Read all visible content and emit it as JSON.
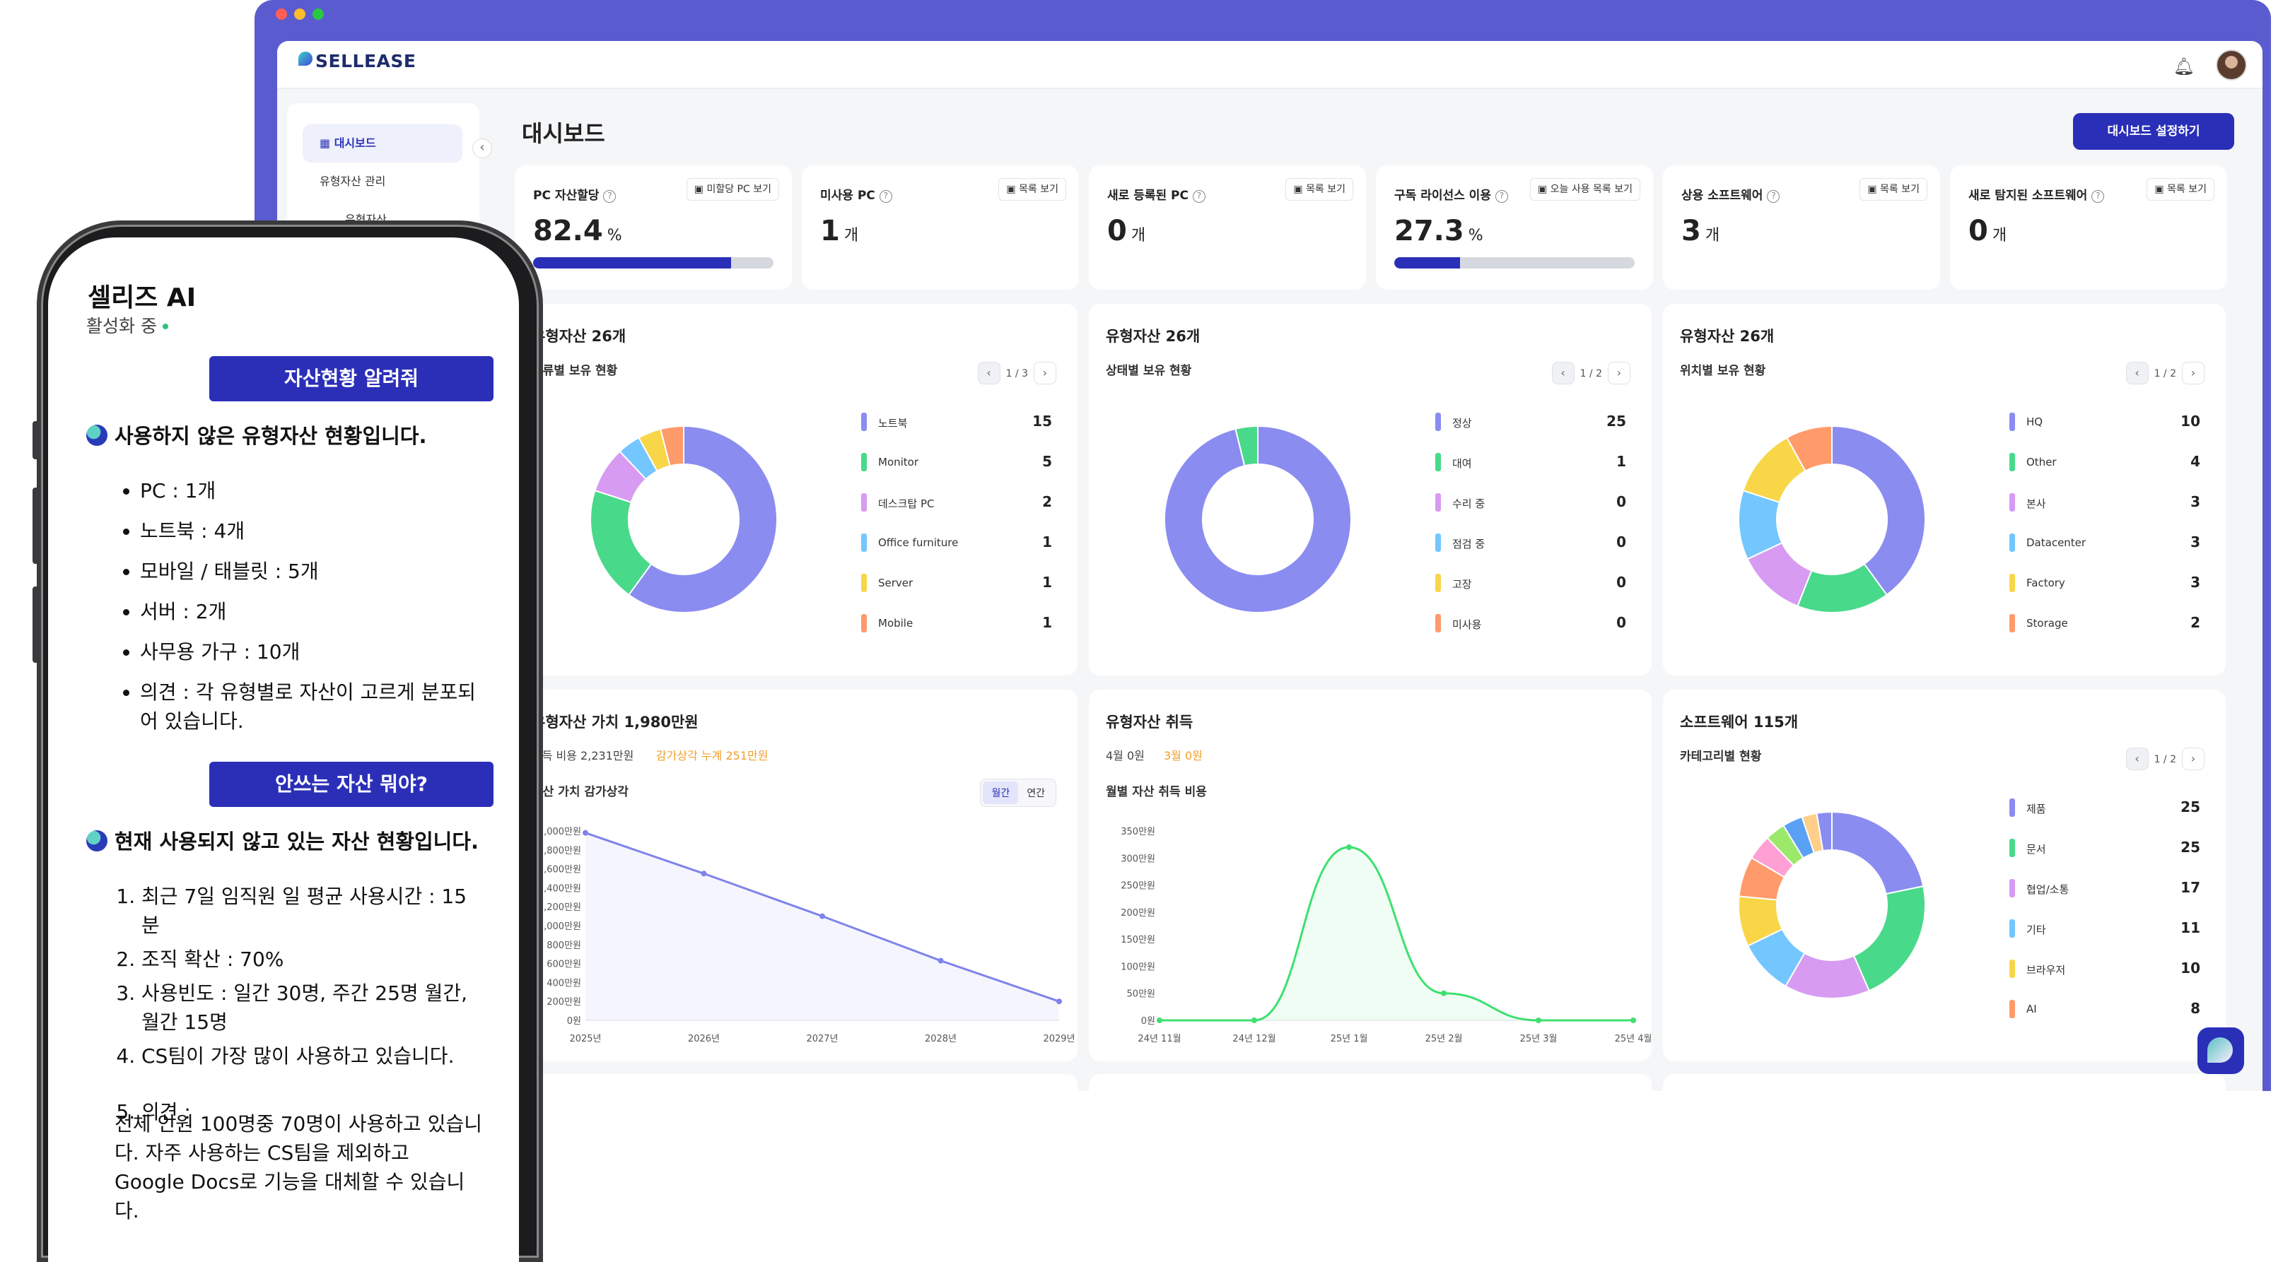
{
  "app": {
    "brand": "SELLEASE",
    "page_title": "대시보드",
    "config_button": "대시보드 설정하기"
  },
  "sidebar": {
    "items": [
      {
        "label": "대시보드"
      },
      {
        "label": "유형자산 관리"
      },
      {
        "label": "유형자산"
      }
    ]
  },
  "kpis": [
    {
      "label": "PC 자산할당",
      "link": "미할당 PC 보기",
      "value": "82.4",
      "unit": "%",
      "progress": 0.824
    },
    {
      "label": "미사용 PC",
      "link": "목록 보기",
      "value": "1",
      "unit": "개"
    },
    {
      "label": "새로 등록된 PC",
      "link": "목록 보기",
      "value": "0",
      "unit": "개"
    },
    {
      "label": "구독 라이선스 이용",
      "link": "오늘 사용 목록 보기",
      "value": "27.3",
      "unit": "%",
      "progress": 0.273
    },
    {
      "label": "상용 소프트웨어",
      "link": "목록 보기",
      "value": "3",
      "unit": "개"
    },
    {
      "label": "새로 탐지된 소프트웨어",
      "link": "목록 보기",
      "value": "0",
      "unit": "개"
    }
  ],
  "cards": {
    "type": {
      "title": "유형자산 26개",
      "subtitle": "종류별 보유 현황",
      "pager": "1 / 3"
    },
    "status": {
      "title": "유형자산 26개",
      "subtitle": "상태별 보유 현황",
      "pager": "1 / 2"
    },
    "location": {
      "title": "유형자산 26개",
      "subtitle": "위치별 보유 현황",
      "pager": "1 / 2"
    },
    "value": {
      "title": "유형자산 가치 1,980만원",
      "cost": "취득 비용 2,231만원",
      "depr": "감가상각 누계 251만원",
      "subtitle": "자산 가치 감가상각",
      "toggle": [
        "월간",
        "연간"
      ]
    },
    "acquire": {
      "title": "유형자산 취득",
      "month": "4월 0원",
      "prev": "3월 0원",
      "subtitle": "월별 자산 취득 비용"
    },
    "software": {
      "title": "소프트웨어 115개",
      "subtitle": "카테고리별 현황",
      "pager": "1 / 2"
    }
  },
  "chart_data": [
    {
      "type": "pie",
      "title": "종류별 보유 현황",
      "categories": [
        "노트북",
        "Monitor",
        "데스크탑 PC",
        "Office furniture",
        "Server",
        "Mobile"
      ],
      "values": [
        15,
        5,
        2,
        1,
        1,
        1
      ],
      "colors": [
        "#8b8cf0",
        "#48d98a",
        "#d79bf2",
        "#74c6ff",
        "#f8d648",
        "#ff9a6a"
      ],
      "legend": "right"
    },
    {
      "type": "pie",
      "title": "상태별 보유 현황",
      "categories": [
        "정상",
        "대여",
        "수리 중",
        "점검 중",
        "고장",
        "미사용"
      ],
      "values": [
        25,
        1,
        0,
        0,
        0,
        0
      ],
      "colors": [
        "#8b8cf0",
        "#48d98a",
        "#d79bf2",
        "#74c6ff",
        "#f8d648",
        "#ff9a6a"
      ],
      "legend": "right"
    },
    {
      "type": "pie",
      "title": "위치별 보유 현황",
      "categories": [
        "HQ",
        "Other",
        "본사",
        "Datacenter",
        "Factory",
        "Storage"
      ],
      "values": [
        10,
        4,
        3,
        3,
        3,
        2
      ],
      "colors": [
        "#8b8cf0",
        "#48d98a",
        "#d79bf2",
        "#74c6ff",
        "#f8d648",
        "#ff9a6a",
        "#ffa0d4"
      ],
      "legend": "right"
    },
    {
      "type": "line",
      "title": "자산 가치 감가상각",
      "x": [
        "2025년",
        "2026년",
        "2027년",
        "2028년",
        "2029년"
      ],
      "y_ticks": [
        "0원",
        "200만원",
        "400만원",
        "600만원",
        "800만원",
        "1,000만원",
        "1,200만원",
        "1,400만원",
        "1,600만원",
        "1,800만원",
        "2,000만원"
      ],
      "ylim": [
        0,
        2000
      ],
      "series": [
        {
          "values": [
            1980,
            1550,
            1100,
            630,
            200
          ],
          "color": "#7f83ea"
        }
      ]
    },
    {
      "type": "line",
      "title": "월별 자산 취득 비용",
      "x": [
        "24년 11월",
        "24년 12월",
        "25년 1월",
        "25년 2월",
        "25년 3월",
        "25년 4월"
      ],
      "y_ticks": [
        "0원",
        "50만원",
        "100만원",
        "150만원",
        "200만원",
        "250만원",
        "300만원",
        "350만원"
      ],
      "ylim": [
        0,
        350
      ],
      "series": [
        {
          "values": [
            0,
            0,
            320,
            50,
            0,
            0
          ],
          "color": "#3ee06f"
        }
      ]
    },
    {
      "type": "pie",
      "title": "카테고리별 현황",
      "categories": [
        "제품",
        "문서",
        "협업/소통",
        "기타",
        "브라우저",
        "AI"
      ],
      "values": [
        25,
        25,
        17,
        11,
        10,
        8
      ],
      "colors": [
        "#8b8cf0",
        "#48d98a",
        "#d79bf2",
        "#74c6ff",
        "#f8d648",
        "#ff9a6a",
        "#ffa0d4",
        "#9be86a",
        "#5aa0f5",
        "#ffcf8a"
      ],
      "extra_values": [
        5,
        4,
        4,
        3,
        3
      ],
      "legend": "right"
    }
  ],
  "chat": {
    "title": "셀리즈 AI",
    "status": "활성화 중",
    "q1": "자산현황 알려줘",
    "a1": "사용하지 않은 유형자산 현황입니다.",
    "a1_items": [
      "PC : 1개",
      "노트북 : 4개",
      "모바일 / 태블릿 : 5개",
      "서버 : 2개",
      "사무용 가구 : 10개",
      "의견 : 각 유형별로 자산이 고르게 분포되어 있습니다."
    ],
    "q2": "안쓰는 자산 뭐야?",
    "a2": "현재 사용되지 않고 있는 자산 현황입니다.",
    "a2_items": [
      "최근 7일 임직원 일 평균 사용시간 : 15분",
      "조직 확산 : 70%",
      "사용빈도 : 일간 30명, 주간 25명 월간, 월간 15명",
      "CS팀이 가장 많이 사용하고 있습니다."
    ],
    "a2_item5": "의견 :",
    "a2_para": "전체 인원 100명중 70명이 사용하고 있습니다. 자주 사용하는 CS팀을 제외하고 Google Docs로 기능을 대체할 수 있습니다."
  }
}
